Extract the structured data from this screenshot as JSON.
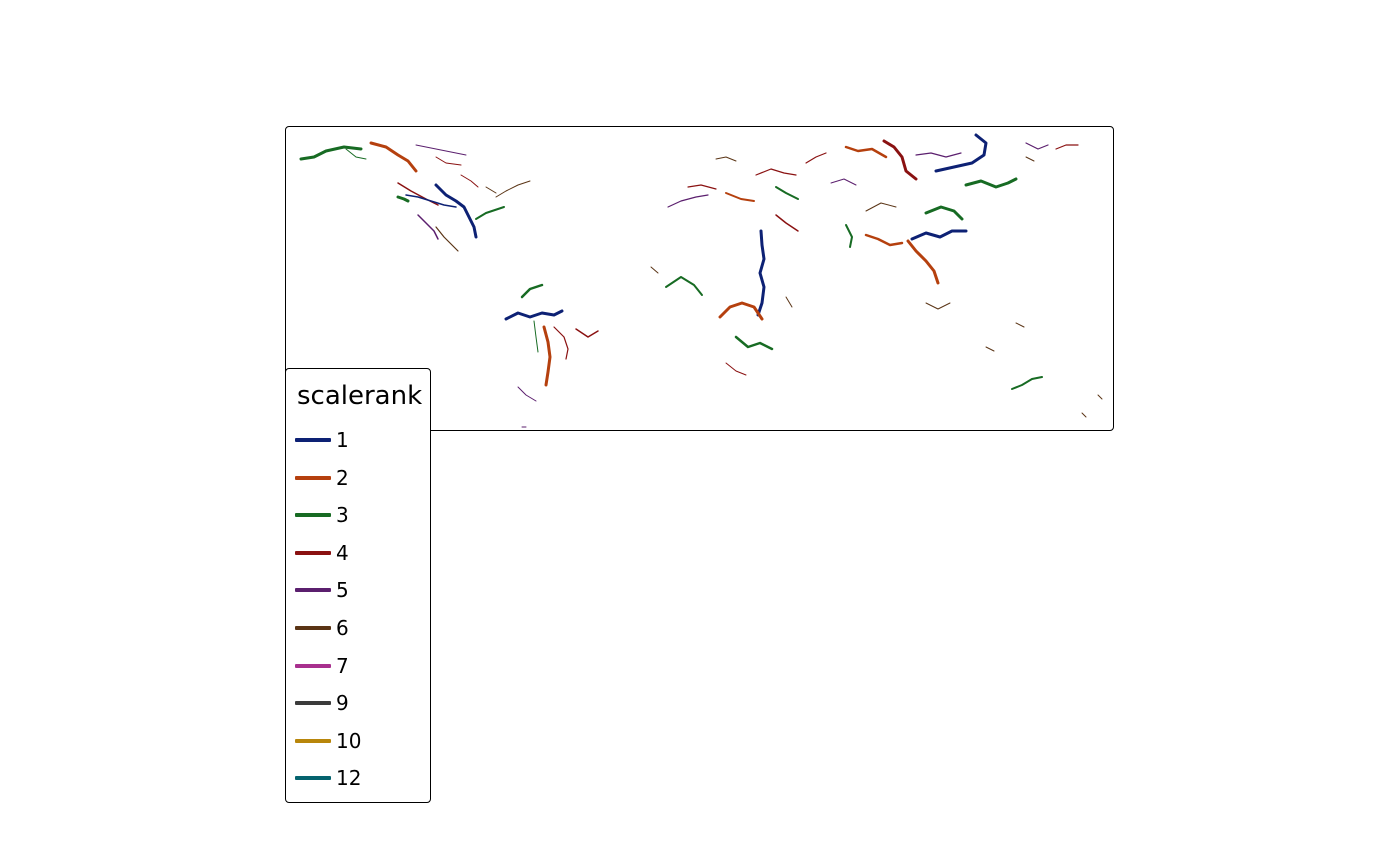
{
  "legend": {
    "title": "scalerank",
    "items": [
      {
        "label": "1",
        "color": "#0d2174"
      },
      {
        "label": "2",
        "color": "#b5400e"
      },
      {
        "label": "3",
        "color": "#176b23"
      },
      {
        "label": "4",
        "color": "#8a1111"
      },
      {
        "label": "5",
        "color": "#5b1f6e"
      },
      {
        "label": "6",
        "color": "#5a3415"
      },
      {
        "label": "7",
        "color": "#a8308e"
      },
      {
        "label": "9",
        "color": "#3b3b3b"
      },
      {
        "label": "10",
        "color": "#b8860b"
      },
      {
        "label": "12",
        "color": "#05636e"
      }
    ]
  }
}
